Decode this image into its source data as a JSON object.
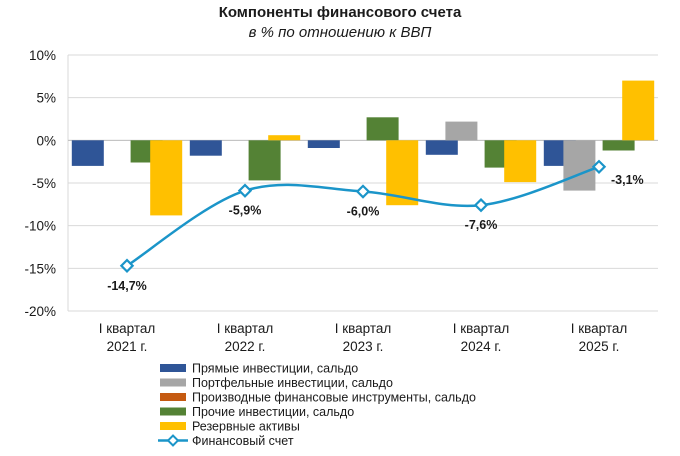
{
  "chart_data": {
    "type": "bar",
    "title": "Компоненты финансового счета",
    "subtitle": "в % по отношению к ВВП",
    "categories": [
      [
        "I квартал",
        "2021 г."
      ],
      [
        "I квартал",
        "2022 г."
      ],
      [
        "I квартал",
        "2023 г."
      ],
      [
        "I квартал",
        "2024 г."
      ],
      [
        "I квартал",
        "2025 г."
      ]
    ],
    "ylim": [
      -20,
      10
    ],
    "yticks": [
      10,
      5,
      0,
      -5,
      -10,
      -15,
      -20
    ],
    "ytick_labels": [
      "10%",
      "5%",
      "0%",
      "-5%",
      "-10%",
      "-15%",
      "-20%"
    ],
    "grid": true,
    "series": [
      {
        "name": "Прямые инвестиции, сальдо",
        "kind": "bar",
        "color": "#2f5597",
        "values": [
          -3.0,
          -1.8,
          -0.9,
          -1.7,
          -3.0
        ]
      },
      {
        "name": "Портфельные инвестиции, сальдо",
        "kind": "bar",
        "color": "#a6a6a6",
        "values": [
          0,
          0,
          0,
          2.2,
          -5.9
        ]
      },
      {
        "name": "Производные финансовые инструменты, сальдо",
        "kind": "bar",
        "color": "#c55a11",
        "values": [
          0,
          0,
          0,
          0,
          0
        ]
      },
      {
        "name": "Прочие инвестиции, сальдо",
        "kind": "bar",
        "color": "#548235",
        "values": [
          -2.6,
          -4.7,
          2.7,
          -3.2,
          -1.2
        ]
      },
      {
        "name": "Резервные активы",
        "kind": "bar",
        "color": "#ffc000",
        "values": [
          -8.8,
          0.6,
          -7.6,
          -4.9,
          7.0
        ]
      },
      {
        "name": "Финансовый счет",
        "kind": "line",
        "color": "#1b95c9",
        "values": [
          -14.7,
          -5.9,
          -6.0,
          -7.6,
          -3.1
        ],
        "labels": [
          "-14,7%",
          "-5,9%",
          "-6,0%",
          "-7,6%",
          "-3,1%"
        ]
      }
    ],
    "legend_position": "bottom"
  }
}
